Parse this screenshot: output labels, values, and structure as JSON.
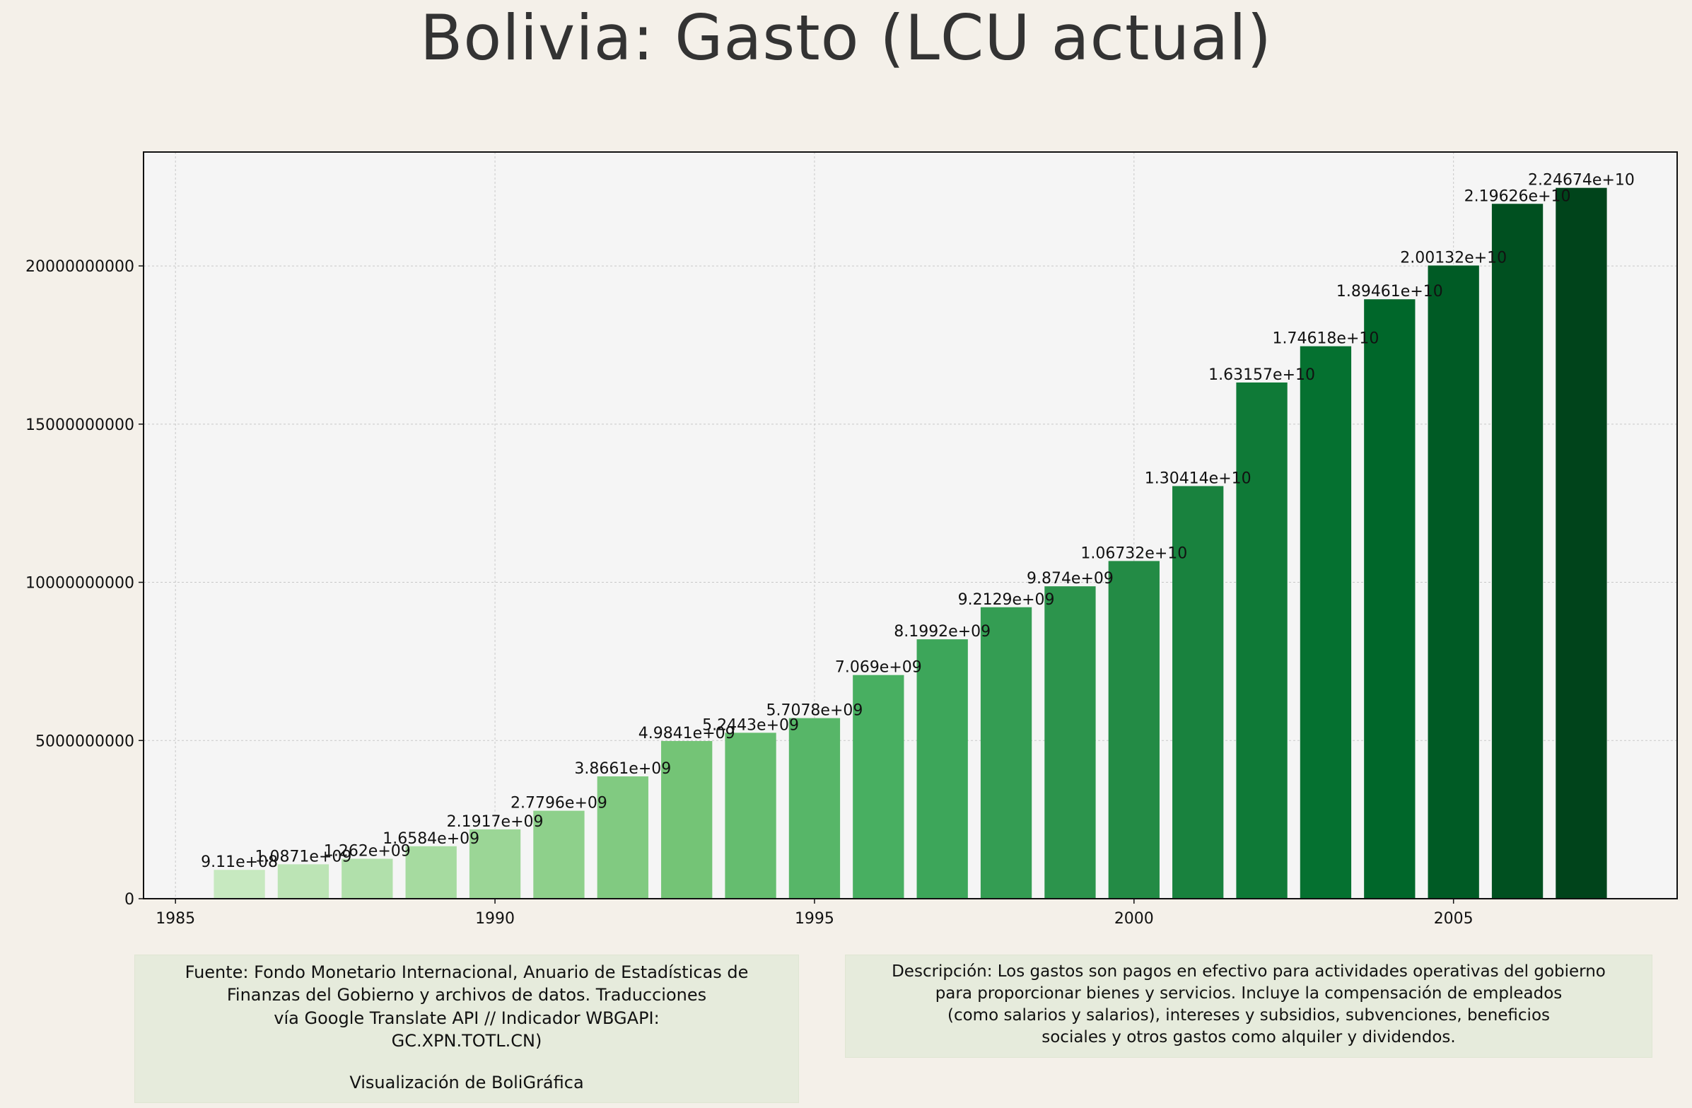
{
  "title": "Bolivia:  Gasto (LCU actual)",
  "colors": {
    "background": "#f4f0e9",
    "plot_background": "#f5f5f5",
    "bar_light": "#c2e6ba",
    "bar_dark": "#00441b",
    "note_background": "#e6ebdc"
  },
  "chart_data": {
    "type": "bar",
    "title": "Bolivia:  Gasto (LCU actual)",
    "xlabel": "",
    "ylabel": "",
    "x": [
      1986,
      1987,
      1988,
      1989,
      1990,
      1991,
      1992,
      1993,
      1994,
      1995,
      1996,
      1997,
      1998,
      1999,
      2000,
      2001,
      2002,
      2003,
      2004,
      2005,
      2006,
      2007
    ],
    "values": [
      911000000,
      1087100000,
      1262000000,
      1658400000,
      2191700000,
      2779600000,
      3866100000,
      4984100000,
      5244300000,
      5707800000,
      7069000000,
      8199200000,
      9212900000,
      9874000000,
      10673200000,
      13041400000,
      16315700000,
      17461800000,
      18946100000,
      20013200000,
      21962600000,
      22467400000
    ],
    "data_labels": [
      "9.11e+08",
      "1.0871e+09",
      "1.262e+09",
      "1.6584e+09",
      "2.1917e+09",
      "2.7796e+09",
      "3.8661e+09",
      "4.9841e+09",
      "5.2443e+09",
      "5.7078e+09",
      "7.069e+09",
      "8.1992e+09",
      "9.2129e+09",
      "9.874e+09",
      "1.06732e+10",
      "1.30414e+10",
      "1.63157e+10",
      "1.74618e+10",
      "1.89461e+10",
      "2.00132e+10",
      "2.19626e+10",
      "2.24674e+10"
    ],
    "xlim": [
      1984.5,
      2008.5
    ],
    "ylim": [
      0,
      23600000000
    ],
    "x_ticks": [
      1985,
      1990,
      1995,
      2000,
      2005
    ],
    "x_tick_labels": [
      "1985",
      "1990",
      "1995",
      "2000",
      "2005"
    ],
    "y_ticks": [
      0,
      5000000000,
      10000000000,
      15000000000,
      20000000000
    ],
    "y_tick_labels": [
      "0",
      "5000000000",
      "10000000000",
      "15000000000",
      "20000000000"
    ],
    "grid": true,
    "legend": "none"
  },
  "notes": {
    "source_lines": [
      "Fuente: Fondo Monetario Internacional, Anuario de Estadísticas de",
      "Finanzas del Gobierno y archivos de datos.   Traducciones",
      "vía Google Translate API // Indicador WBGAPI:",
      "GC.XPN.TOTL.CN)"
    ],
    "credit": "Visualización de BoliGráfica",
    "description_lines": [
      "Descripción: Los gastos son pagos en efectivo para actividades operativas del gobierno",
      "para proporcionar bienes y servicios. Incluye la compensación de empleados",
      "(como salarios y salarios), intereses y subsidios, subvenciones, beneficios",
      "sociales y otros gastos como alquiler y dividendos."
    ]
  }
}
